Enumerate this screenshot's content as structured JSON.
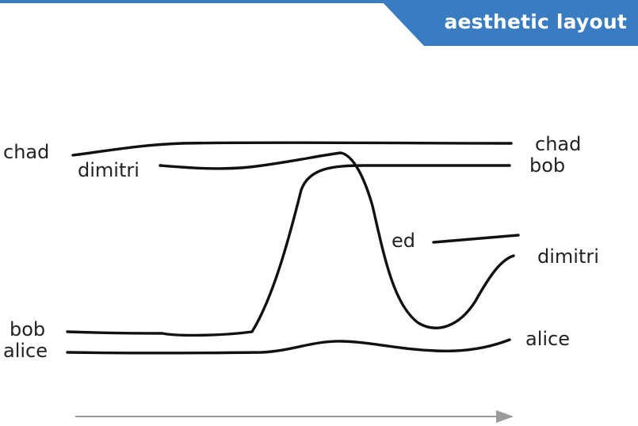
{
  "header": {
    "title": "aesthetic layout"
  },
  "diagram": {
    "left_labels": [
      "chad",
      "dimitri",
      "bob",
      "alice"
    ],
    "right_labels": [
      "chad",
      "bob",
      "dimitri",
      "alice"
    ],
    "mid_labels": [
      "ed"
    ],
    "colors": {
      "banner": "#3a7cc2",
      "strand": "#111111",
      "axis": "#9a9a9a"
    }
  }
}
